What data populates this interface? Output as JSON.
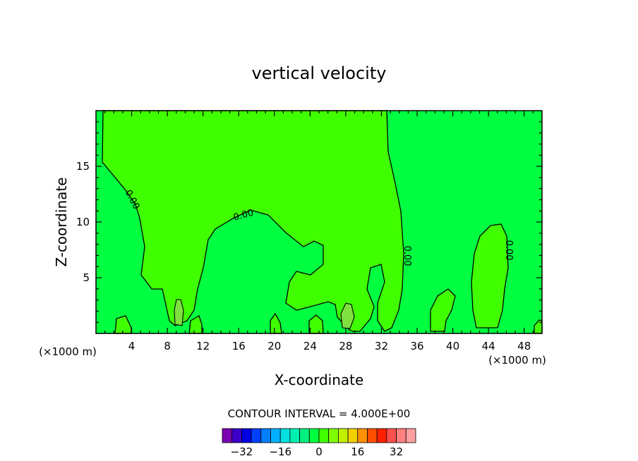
{
  "chart_data": {
    "type": "contour",
    "title": "vertical velocity",
    "xlabel": "X-coordinate",
    "ylabel": "Z-coordinate",
    "x_unit_label": "(×1000 m)",
    "x_unit_label_right": "(×1000 m)",
    "xlim": [
      0,
      50
    ],
    "ylim": [
      0,
      20
    ],
    "x_ticks": [
      4,
      8,
      12,
      16,
      20,
      24,
      28,
      32,
      36,
      40,
      44,
      48
    ],
    "x_tick_labels": [
      "4",
      "8",
      "12",
      "16",
      "20",
      "24",
      "28",
      "32",
      "36",
      "40",
      "44",
      "48"
    ],
    "y_ticks": [
      5,
      10,
      15
    ],
    "y_tick_labels": [
      "5",
      "10",
      "15"
    ],
    "contour_labels": [
      "0.00",
      "0.00",
      "0.00",
      "0.00"
    ],
    "contour_interval_text": "CONTOUR INTERVAL = 4.000E+00",
    "colorbar": {
      "tick_values": [
        -32,
        -16,
        0,
        16,
        32
      ],
      "tick_labels": [
        "−32",
        "−16",
        "0",
        "16",
        "32"
      ],
      "colors": [
        "#7a00b0",
        "#3c00c8",
        "#0000e0",
        "#0040ff",
        "#0080ff",
        "#00b0ff",
        "#00e0e0",
        "#00f0b0",
        "#00f080",
        "#00ff40",
        "#40ff00",
        "#80ff00",
        "#c0f000",
        "#f0d000",
        "#ff9000",
        "#ff5000",
        "#ff2000",
        "#ff5050",
        "#ff8080",
        "#ffa0a0"
      ]
    },
    "colors": {
      "negative_fill": "#00ff40",
      "positive_fill": "#40ff00",
      "strong_positive_fill": "#80e040",
      "contour_line": "#000000"
    }
  }
}
